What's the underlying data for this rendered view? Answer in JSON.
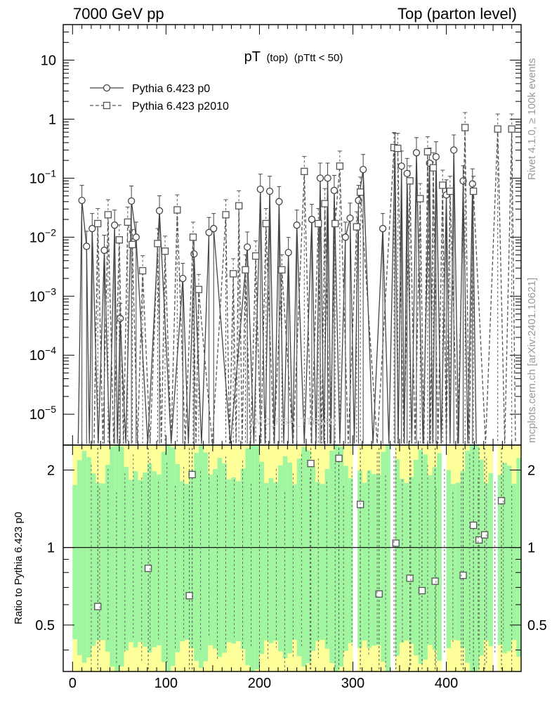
{
  "header": {
    "left": "7000 GeV pp",
    "right": "Top (parton level)"
  },
  "side_labels": {
    "rivet": "Rivet 4.1.0, ≥ 100k events",
    "mcplots": "mcplots.cern.ch [arXiv:2401.10621]"
  },
  "watermark": "(MC_FSA_TTBAR)",
  "ratio_ylabel": "Ratio to Pythia 6.423 p0",
  "colors": {
    "series0": "#444444",
    "series1": "#555555",
    "band_inner": "#a0f5a0",
    "band_outer": "#ffff99"
  },
  "chart_data": {
    "type": "line",
    "title": "pT (top) (pTtt < 50)",
    "title_main": "pT",
    "title_sub": "(top)",
    "title_cond": "(pTtt < 50)",
    "xlabel": "",
    "ylabel": "",
    "xlim": [
      -10,
      480
    ],
    "ylim": [
      3e-06,
      40
    ],
    "yscale": "log",
    "x_ticks": [
      0,
      100,
      200,
      300,
      400
    ],
    "y_ticks": [
      {
        "value": 10,
        "label": "10"
      },
      {
        "value": 1,
        "label": "1"
      },
      {
        "value": 0.1,
        "label": "10−1"
      },
      {
        "value": 0.01,
        "label": "10−2"
      },
      {
        "value": 0.001,
        "label": "10−3"
      },
      {
        "value": 0.0001,
        "label": "10−4"
      },
      {
        "value": 1e-05,
        "label": "10−5"
      }
    ],
    "legend": {
      "position": "top-left",
      "entries": [
        "Pythia 6.423 p0",
        "Pythia 6.423 p2010"
      ]
    },
    "series": [
      {
        "name": "Pythia 6.423 p0",
        "marker": "circle",
        "dash": "solid",
        "x": [
          10,
          15,
          21,
          34,
          45,
          51,
          63,
          68,
          93,
          118,
          130,
          146,
          151,
          187,
          201,
          211,
          221,
          231,
          240,
          256,
          265,
          273,
          280,
          292,
          297,
          306,
          311,
          332,
          345,
          352,
          358,
          368,
          382,
          389,
          400,
          408,
          418,
          428
        ],
        "values": [
          0.042,
          0.007,
          0.014,
          0.006,
          0.016,
          0.00042,
          0.041,
          0.01,
          0.028,
          0.002,
          0.0052,
          0.012,
          0.014,
          0.0068,
          0.065,
          0.06,
          0.04,
          0.0055,
          0.016,
          0.02,
          0.1,
          0.1,
          0.062,
          0.01,
          0.021,
          0.042,
          0.14,
          0.014,
          0.32,
          0.16,
          0.12,
          0.27,
          0.18,
          0.23,
          0.052,
          0.3,
          0.09,
          0.08
        ],
        "ratio_x": [],
        "ratio_values": []
      },
      {
        "name": "Pythia 6.423 p2010",
        "marker": "square",
        "dash": "dashed",
        "x": [
          27,
          38,
          50,
          59,
          64,
          75,
          91,
          99,
          112,
          129,
          135,
          164,
          172,
          178,
          185,
          196,
          207,
          224,
          248,
          263,
          270,
          281,
          286,
          304,
          308,
          344,
          348,
          361,
          372,
          380,
          386,
          396,
          404,
          420,
          429,
          455,
          470
        ],
        "values": [
          0.017,
          0.024,
          0.009,
          0.018,
          0.0075,
          0.0027,
          0.0078,
          0.0058,
          0.029,
          0.01,
          0.0013,
          0.024,
          0.0024,
          0.034,
          0.0028,
          0.0048,
          0.017,
          0.0028,
          0.13,
          0.017,
          0.037,
          0.017,
          0.16,
          0.015,
          0.058,
          0.33,
          0.32,
          0.09,
          0.045,
          0.28,
          0.15,
          0.076,
          0.06,
          0.72,
          0.06,
          0.68,
          0.68
        ],
        "ratio_x": [
          27,
          81,
          128,
          125,
          255,
          285,
          308,
          328,
          346,
          361,
          374,
          388,
          418,
          429,
          435,
          441,
          459
        ],
        "ratio_values": [
          0.59,
          0.83,
          1.92,
          0.65,
          2.12,
          2.22,
          1.47,
          0.66,
          1.04,
          0.76,
          0.68,
          0.74,
          0.78,
          1.22,
          1.07,
          1.12,
          1.52
        ]
      }
    ],
    "ratio": {
      "ylim": [
        0.33,
        2.5
      ],
      "yscale": "log",
      "y_ticks": [
        {
          "value": 0.5,
          "label": "0.5"
        },
        {
          "value": 1,
          "label": "1"
        },
        {
          "value": 2,
          "label": "2"
        }
      ],
      "reference": 1,
      "band_gaps": [
        [
          300,
          303
        ],
        [
          337,
          341
        ],
        [
          392,
          396
        ],
        [
          447,
          452
        ]
      ]
    }
  }
}
